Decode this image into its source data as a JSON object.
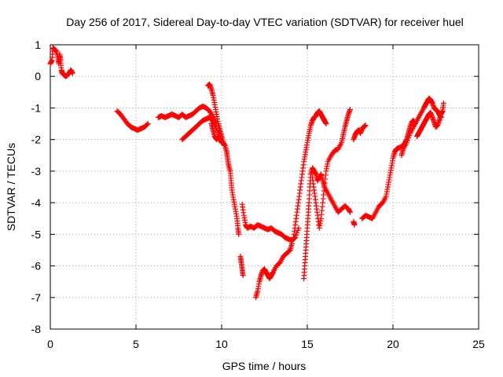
{
  "chart_data": {
    "type": "scatter",
    "title": "Day 256 of 2017, Sidereal Day-to-day VTEC variation (SDTVAR) for receiver huel",
    "xlabel": "GPS time / hours",
    "ylabel": "SDTVAR / TECUs",
    "xlim": [
      0,
      25
    ],
    "ylim": [
      -8,
      1
    ],
    "xticks": [
      0,
      5,
      10,
      15,
      20,
      25
    ],
    "yticks": [
      -8,
      -7,
      -6,
      -5,
      -4,
      -3,
      -2,
      -1,
      0,
      1
    ],
    "grid": true,
    "marker": "plus",
    "color": "#ff0000",
    "series": [
      {
        "segments": [
          [
            [
              0.0,
              0.4
            ],
            [
              0.1,
              0.5
            ],
            [
              0.15,
              0.9
            ],
            [
              0.25,
              0.85
            ],
            [
              0.35,
              0.8
            ],
            [
              0.45,
              0.6
            ],
            [
              0.5,
              0.4
            ],
            [
              0.55,
              0.7
            ],
            [
              0.6,
              0.5
            ],
            [
              0.65,
              0.2
            ],
            [
              0.7,
              0.1
            ],
            [
              0.8,
              0.05
            ],
            [
              0.9,
              0.0
            ],
            [
              1.0,
              0.05
            ],
            [
              1.1,
              0.1
            ],
            [
              1.2,
              0.2
            ],
            [
              1.3,
              0.1
            ]
          ],
          [
            [
              3.9,
              -1.1
            ],
            [
              4.1,
              -1.2
            ],
            [
              4.3,
              -1.35
            ],
            [
              4.5,
              -1.5
            ],
            [
              4.7,
              -1.6
            ],
            [
              4.9,
              -1.65
            ],
            [
              5.1,
              -1.7
            ],
            [
              5.3,
              -1.65
            ],
            [
              5.5,
              -1.6
            ],
            [
              5.7,
              -1.5
            ]
          ],
          [
            [
              6.3,
              -1.3
            ],
            [
              6.5,
              -1.25
            ],
            [
              6.7,
              -1.3
            ],
            [
              6.9,
              -1.25
            ],
            [
              7.1,
              -1.2
            ],
            [
              7.3,
              -1.25
            ],
            [
              7.5,
              -1.3
            ],
            [
              7.7,
              -1.2
            ],
            [
              7.9,
              -1.3
            ],
            [
              8.1,
              -1.25
            ],
            [
              8.3,
              -1.2
            ],
            [
              8.5,
              -1.1
            ],
            [
              8.7,
              -1.0
            ],
            [
              8.9,
              -0.95
            ],
            [
              9.1,
              -1.0
            ],
            [
              9.3,
              -1.1
            ],
            [
              9.5,
              -1.3
            ],
            [
              9.7,
              -1.5
            ]
          ],
          [
            [
              7.7,
              -2.0
            ],
            [
              7.9,
              -1.9
            ],
            [
              8.1,
              -1.8
            ],
            [
              8.3,
              -1.7
            ],
            [
              8.5,
              -1.6
            ],
            [
              8.7,
              -1.5
            ],
            [
              8.9,
              -1.4
            ],
            [
              9.1,
              -1.35
            ],
            [
              9.3,
              -1.3
            ],
            [
              9.5,
              -1.45
            ],
            [
              9.7,
              -1.65
            ],
            [
              9.9,
              -1.9
            ]
          ],
          [
            [
              9.2,
              -0.3
            ],
            [
              9.3,
              -0.25
            ],
            [
              9.4,
              -0.4
            ],
            [
              9.5,
              -0.6
            ],
            [
              9.6,
              -0.9
            ],
            [
              9.7,
              -1.2
            ],
            [
              9.8,
              -1.5
            ],
            [
              9.9,
              -1.7
            ],
            [
              10.0,
              -1.9
            ],
            [
              10.1,
              -2.1
            ],
            [
              10.2,
              -2.2
            ],
            [
              10.3,
              -2.4
            ],
            [
              10.35,
              -2.6
            ],
            [
              10.4,
              -2.8
            ],
            [
              10.5,
              -3.0
            ],
            [
              10.55,
              -3.3
            ],
            [
              10.6,
              -3.6
            ],
            [
              10.7,
              -3.9
            ],
            [
              10.8,
              -4.2
            ],
            [
              10.9,
              -4.5
            ],
            [
              10.95,
              -4.8
            ],
            [
              11.0,
              -5.0
            ]
          ],
          [
            [
              9.4,
              -1.5
            ],
            [
              9.5,
              -1.7
            ],
            [
              9.6,
              -1.9
            ],
            [
              9.7,
              -2.0
            ],
            [
              9.8,
              -1.9
            ],
            [
              9.9,
              -2.0
            ],
            [
              10.0,
              -2.1
            ]
          ],
          [
            [
              11.1,
              -5.7
            ],
            [
              11.15,
              -5.9
            ],
            [
              11.2,
              -6.1
            ],
            [
              11.25,
              -6.3
            ]
          ],
          [
            [
              11.2,
              -4.05
            ],
            [
              11.3,
              -4.4
            ],
            [
              11.4,
              -4.7
            ],
            [
              11.5,
              -4.8
            ],
            [
              11.7,
              -4.75
            ],
            [
              11.9,
              -4.8
            ],
            [
              12.1,
              -4.7
            ],
            [
              12.3,
              -4.75
            ],
            [
              12.5,
              -4.8
            ],
            [
              12.7,
              -4.85
            ],
            [
              12.9,
              -4.8
            ],
            [
              13.1,
              -4.9
            ],
            [
              13.3,
              -4.95
            ],
            [
              13.5,
              -5.0
            ],
            [
              13.7,
              -5.1
            ],
            [
              13.9,
              -5.15
            ],
            [
              14.1,
              -5.2
            ],
            [
              14.3,
              -5.1
            ],
            [
              14.5,
              -4.8
            ]
          ],
          [
            [
              12.0,
              -7.0
            ],
            [
              12.1,
              -6.8
            ],
            [
              12.2,
              -6.5
            ],
            [
              12.3,
              -6.3
            ],
            [
              12.4,
              -6.15
            ],
            [
              12.5,
              -6.1
            ],
            [
              12.6,
              -6.2
            ],
            [
              12.7,
              -6.3
            ],
            [
              12.8,
              -6.4
            ],
            [
              12.9,
              -6.3
            ],
            [
              13.0,
              -6.2
            ],
            [
              13.2,
              -6.0
            ],
            [
              13.4,
              -5.9
            ],
            [
              13.6,
              -5.7
            ],
            [
              13.8,
              -5.6
            ],
            [
              14.0,
              -5.5
            ],
            [
              14.1,
              -5.3
            ]
          ],
          [
            [
              14.2,
              -5.1
            ],
            [
              14.3,
              -4.7
            ],
            [
              14.4,
              -4.3
            ],
            [
              14.5,
              -3.9
            ],
            [
              14.6,
              -3.5
            ],
            [
              14.7,
              -3.1
            ],
            [
              14.8,
              -2.7
            ],
            [
              14.9,
              -2.4
            ],
            [
              15.0,
              -2.1
            ],
            [
              15.1,
              -1.8
            ],
            [
              15.2,
              -1.55
            ],
            [
              15.3,
              -1.4
            ],
            [
              15.4,
              -1.3
            ],
            [
              15.5,
              -1.25
            ],
            [
              15.6,
              -1.15
            ],
            [
              15.7,
              -1.1
            ],
            [
              15.8,
              -1.2
            ],
            [
              15.9,
              -1.3
            ],
            [
              16.0,
              -1.4
            ],
            [
              16.1,
              -1.5
            ]
          ],
          [
            [
              14.8,
              -6.4
            ],
            [
              14.85,
              -6.0
            ],
            [
              14.9,
              -5.6
            ],
            [
              14.95,
              -5.2
            ],
            [
              15.0,
              -4.8
            ],
            [
              15.05,
              -4.4
            ],
            [
              15.1,
              -4.0
            ],
            [
              15.15,
              -3.5
            ],
            [
              15.2,
              -3.1
            ],
            [
              15.3,
              -2.9
            ],
            [
              15.4,
              -3.0
            ],
            [
              15.5,
              -3.1
            ],
            [
              15.6,
              -3.3
            ],
            [
              15.7,
              -3.2
            ],
            [
              15.8,
              -3.1
            ],
            [
              15.9,
              -3.3
            ],
            [
              16.0,
              -3.5
            ],
            [
              16.2,
              -3.7
            ],
            [
              16.4,
              -3.9
            ],
            [
              16.6,
              -4.1
            ],
            [
              16.8,
              -4.3
            ],
            [
              17.0,
              -4.2
            ],
            [
              17.2,
              -4.1
            ],
            [
              17.4,
              -4.2
            ],
            [
              17.5,
              -4.3
            ]
          ],
          [
            [
              15.3,
              -3.2
            ],
            [
              15.4,
              -3.6
            ],
            [
              15.5,
              -4.0
            ],
            [
              15.6,
              -4.4
            ],
            [
              15.7,
              -4.8
            ],
            [
              15.8,
              -4.5
            ],
            [
              15.9,
              -4.0
            ],
            [
              16.0,
              -3.5
            ],
            [
              16.1,
              -3.0
            ],
            [
              16.2,
              -2.7
            ],
            [
              16.4,
              -2.5
            ],
            [
              16.6,
              -2.35
            ],
            [
              16.8,
              -2.3
            ],
            [
              17.0,
              -2.1
            ],
            [
              17.1,
              -1.85
            ],
            [
              17.2,
              -1.6
            ],
            [
              17.3,
              -1.4
            ],
            [
              17.4,
              -1.2
            ],
            [
              17.5,
              -1.05
            ]
          ],
          [
            [
              17.7,
              -4.6
            ],
            [
              17.75,
              -4.7
            ]
          ],
          [
            [
              17.7,
              -2.0
            ],
            [
              17.8,
              -1.85
            ],
            [
              17.9,
              -1.75
            ],
            [
              18.0,
              -1.7
            ],
            [
              18.1,
              -1.8
            ],
            [
              18.2,
              -1.65
            ],
            [
              18.3,
              -1.6
            ],
            [
              18.4,
              -1.55
            ]
          ],
          [
            [
              18.2,
              -4.5
            ],
            [
              18.4,
              -4.4
            ],
            [
              18.6,
              -4.45
            ],
            [
              18.8,
              -4.5
            ],
            [
              19.0,
              -4.3
            ],
            [
              19.2,
              -4.1
            ],
            [
              19.4,
              -4.0
            ],
            [
              19.6,
              -3.8
            ],
            [
              19.7,
              -3.5
            ],
            [
              19.8,
              -3.2
            ],
            [
              19.9,
              -2.9
            ],
            [
              20.0,
              -2.6
            ],
            [
              20.1,
              -2.4
            ],
            [
              20.2,
              -2.3
            ],
            [
              20.4,
              -2.25
            ],
            [
              20.6,
              -2.2
            ],
            [
              20.7,
              -2.1
            ],
            [
              20.8,
              -2.0
            ],
            [
              20.9,
              -1.8
            ],
            [
              21.0,
              -1.6
            ],
            [
              21.1,
              -1.45
            ],
            [
              21.2,
              -1.4
            ],
            [
              21.3,
              -1.5
            ]
          ],
          [
            [
              20.5,
              -2.5
            ],
            [
              20.6,
              -2.3
            ],
            [
              20.8,
              -2.1
            ],
            [
              21.0,
              -1.8
            ],
            [
              21.2,
              -1.6
            ],
            [
              21.4,
              -1.4
            ],
            [
              21.6,
              -1.2
            ],
            [
              21.8,
              -1.0
            ],
            [
              21.9,
              -0.9
            ],
            [
              22.0,
              -0.8
            ],
            [
              22.1,
              -0.7
            ],
            [
              22.2,
              -0.75
            ],
            [
              22.3,
              -0.85
            ],
            [
              22.4,
              -1.0
            ],
            [
              22.5,
              -1.05
            ],
            [
              22.6,
              -1.1
            ],
            [
              22.7,
              -1.2
            ],
            [
              22.8,
              -1.3
            ]
          ],
          [
            [
              21.4,
              -1.9
            ],
            [
              21.5,
              -1.8
            ],
            [
              21.6,
              -1.7
            ],
            [
              21.7,
              -1.6
            ],
            [
              21.8,
              -1.5
            ],
            [
              21.9,
              -1.4
            ],
            [
              22.0,
              -1.3
            ],
            [
              22.1,
              -1.2
            ],
            [
              22.2,
              -1.15
            ],
            [
              22.3,
              -1.3
            ],
            [
              22.4,
              -1.45
            ],
            [
              22.5,
              -1.6
            ],
            [
              22.6,
              -1.55
            ],
            [
              22.7,
              -1.4
            ],
            [
              22.8,
              -1.2
            ],
            [
              22.9,
              -1.1
            ],
            [
              22.95,
              -0.85
            ]
          ]
        ]
      }
    ]
  }
}
